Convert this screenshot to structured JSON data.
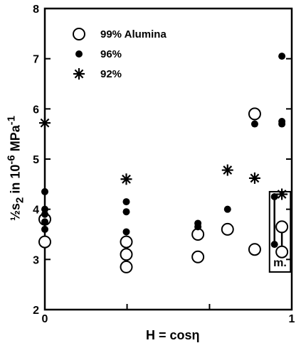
{
  "chart_data": {
    "type": "scatter",
    "title": "",
    "xlabel": "H = cosη",
    "ylabel_html": "½s<sub>2</sub> in 10<sup>-6</sup> MPa<sup>-1</sup>",
    "xlim": [
      0,
      1
    ],
    "ylim": [
      2,
      8
    ],
    "x_tick_labels": [
      {
        "v": 0,
        "t": "0"
      },
      {
        "v": 1,
        "t": "1"
      }
    ],
    "x_minor_ticks": [
      0.333,
      0.667
    ],
    "y_ticks": [
      {
        "v": 2,
        "t": "2"
      },
      {
        "v": 3,
        "t": "3"
      },
      {
        "v": 4,
        "t": "4"
      },
      {
        "v": 5,
        "t": "5"
      },
      {
        "v": 6,
        "t": "6"
      },
      {
        "v": 7,
        "t": "7"
      },
      {
        "v": 8,
        "t": "8"
      }
    ],
    "legend_position": "top-left",
    "series": [
      {
        "name": "99% Alumina",
        "marker": "open-circle",
        "points": [
          [
            0,
            3.8
          ],
          [
            0,
            3.35
          ],
          [
            0.33,
            3.35
          ],
          [
            0.33,
            3.1
          ],
          [
            0.33,
            2.85
          ],
          [
            0.62,
            3.5
          ],
          [
            0.62,
            3.05
          ],
          [
            0.74,
            3.6
          ],
          [
            0.85,
            5.9
          ],
          [
            0.85,
            3.2
          ],
          [
            0.96,
            3.65
          ],
          [
            0.96,
            3.15
          ]
        ]
      },
      {
        "name": "96%",
        "marker": "filled-circle",
        "points": [
          [
            0,
            4.35
          ],
          [
            0,
            4.0
          ],
          [
            0,
            3.9
          ],
          [
            0,
            3.75
          ],
          [
            0,
            3.6
          ],
          [
            0.33,
            4.15
          ],
          [
            0.33,
            3.95
          ],
          [
            0.33,
            3.55
          ],
          [
            0.62,
            3.72
          ],
          [
            0.62,
            3.65
          ],
          [
            0.74,
            4.0
          ],
          [
            0.85,
            5.7
          ],
          [
            0.93,
            4.25
          ],
          [
            0.93,
            3.3
          ],
          [
            0.96,
            7.05
          ],
          [
            0.96,
            5.75
          ],
          [
            0.96,
            5.7
          ]
        ]
      },
      {
        "name": "92%",
        "marker": "asterisk",
        "points": [
          [
            0,
            5.72
          ],
          [
            0.33,
            4.6
          ],
          [
            0.74,
            4.78
          ],
          [
            0.85,
            4.62
          ],
          [
            0.96,
            4.3
          ]
        ]
      }
    ],
    "annotations": [
      {
        "text": "m.",
        "box": true
      }
    ]
  }
}
